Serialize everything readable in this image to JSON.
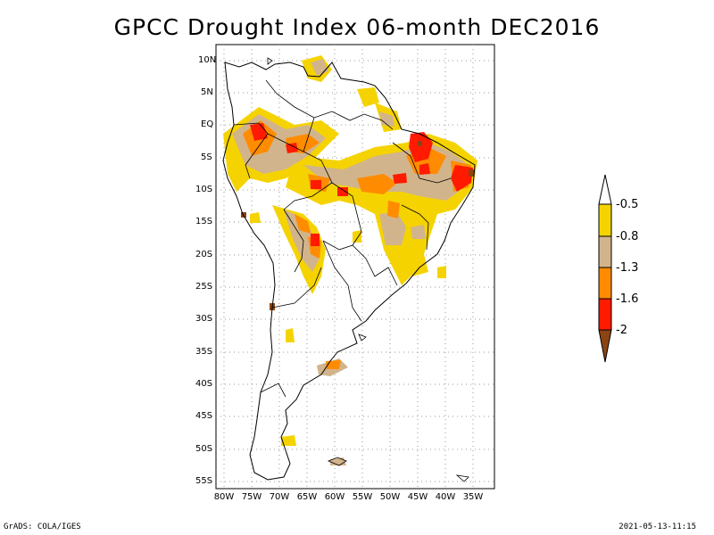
{
  "title": "GPCC Drought Index 06-month DEC2016",
  "y_ticks": [
    "10N",
    "5N",
    "EQ",
    "5S",
    "10S",
    "15S",
    "20S",
    "25S",
    "30S",
    "35S",
    "40S",
    "45S",
    "50S",
    "55S"
  ],
  "x_ticks": [
    "80W",
    "75W",
    "70W",
    "65W",
    "60W",
    "55W",
    "50W",
    "45W",
    "40W",
    "35W"
  ],
  "legend": {
    "labels": [
      "-0.5",
      "-0.8",
      "-1.3",
      "-1.6",
      "-2"
    ],
    "colors": {
      "white": "#ffffff",
      "yellow": "#f5d300",
      "tan": "#d2b48c",
      "orange": "#ff8c00",
      "red": "#ff1a00",
      "brown": "#8b4513"
    }
  },
  "footer": {
    "left": "GrADS: COLA/IGES",
    "right": "2021-05-13-11:15"
  }
}
